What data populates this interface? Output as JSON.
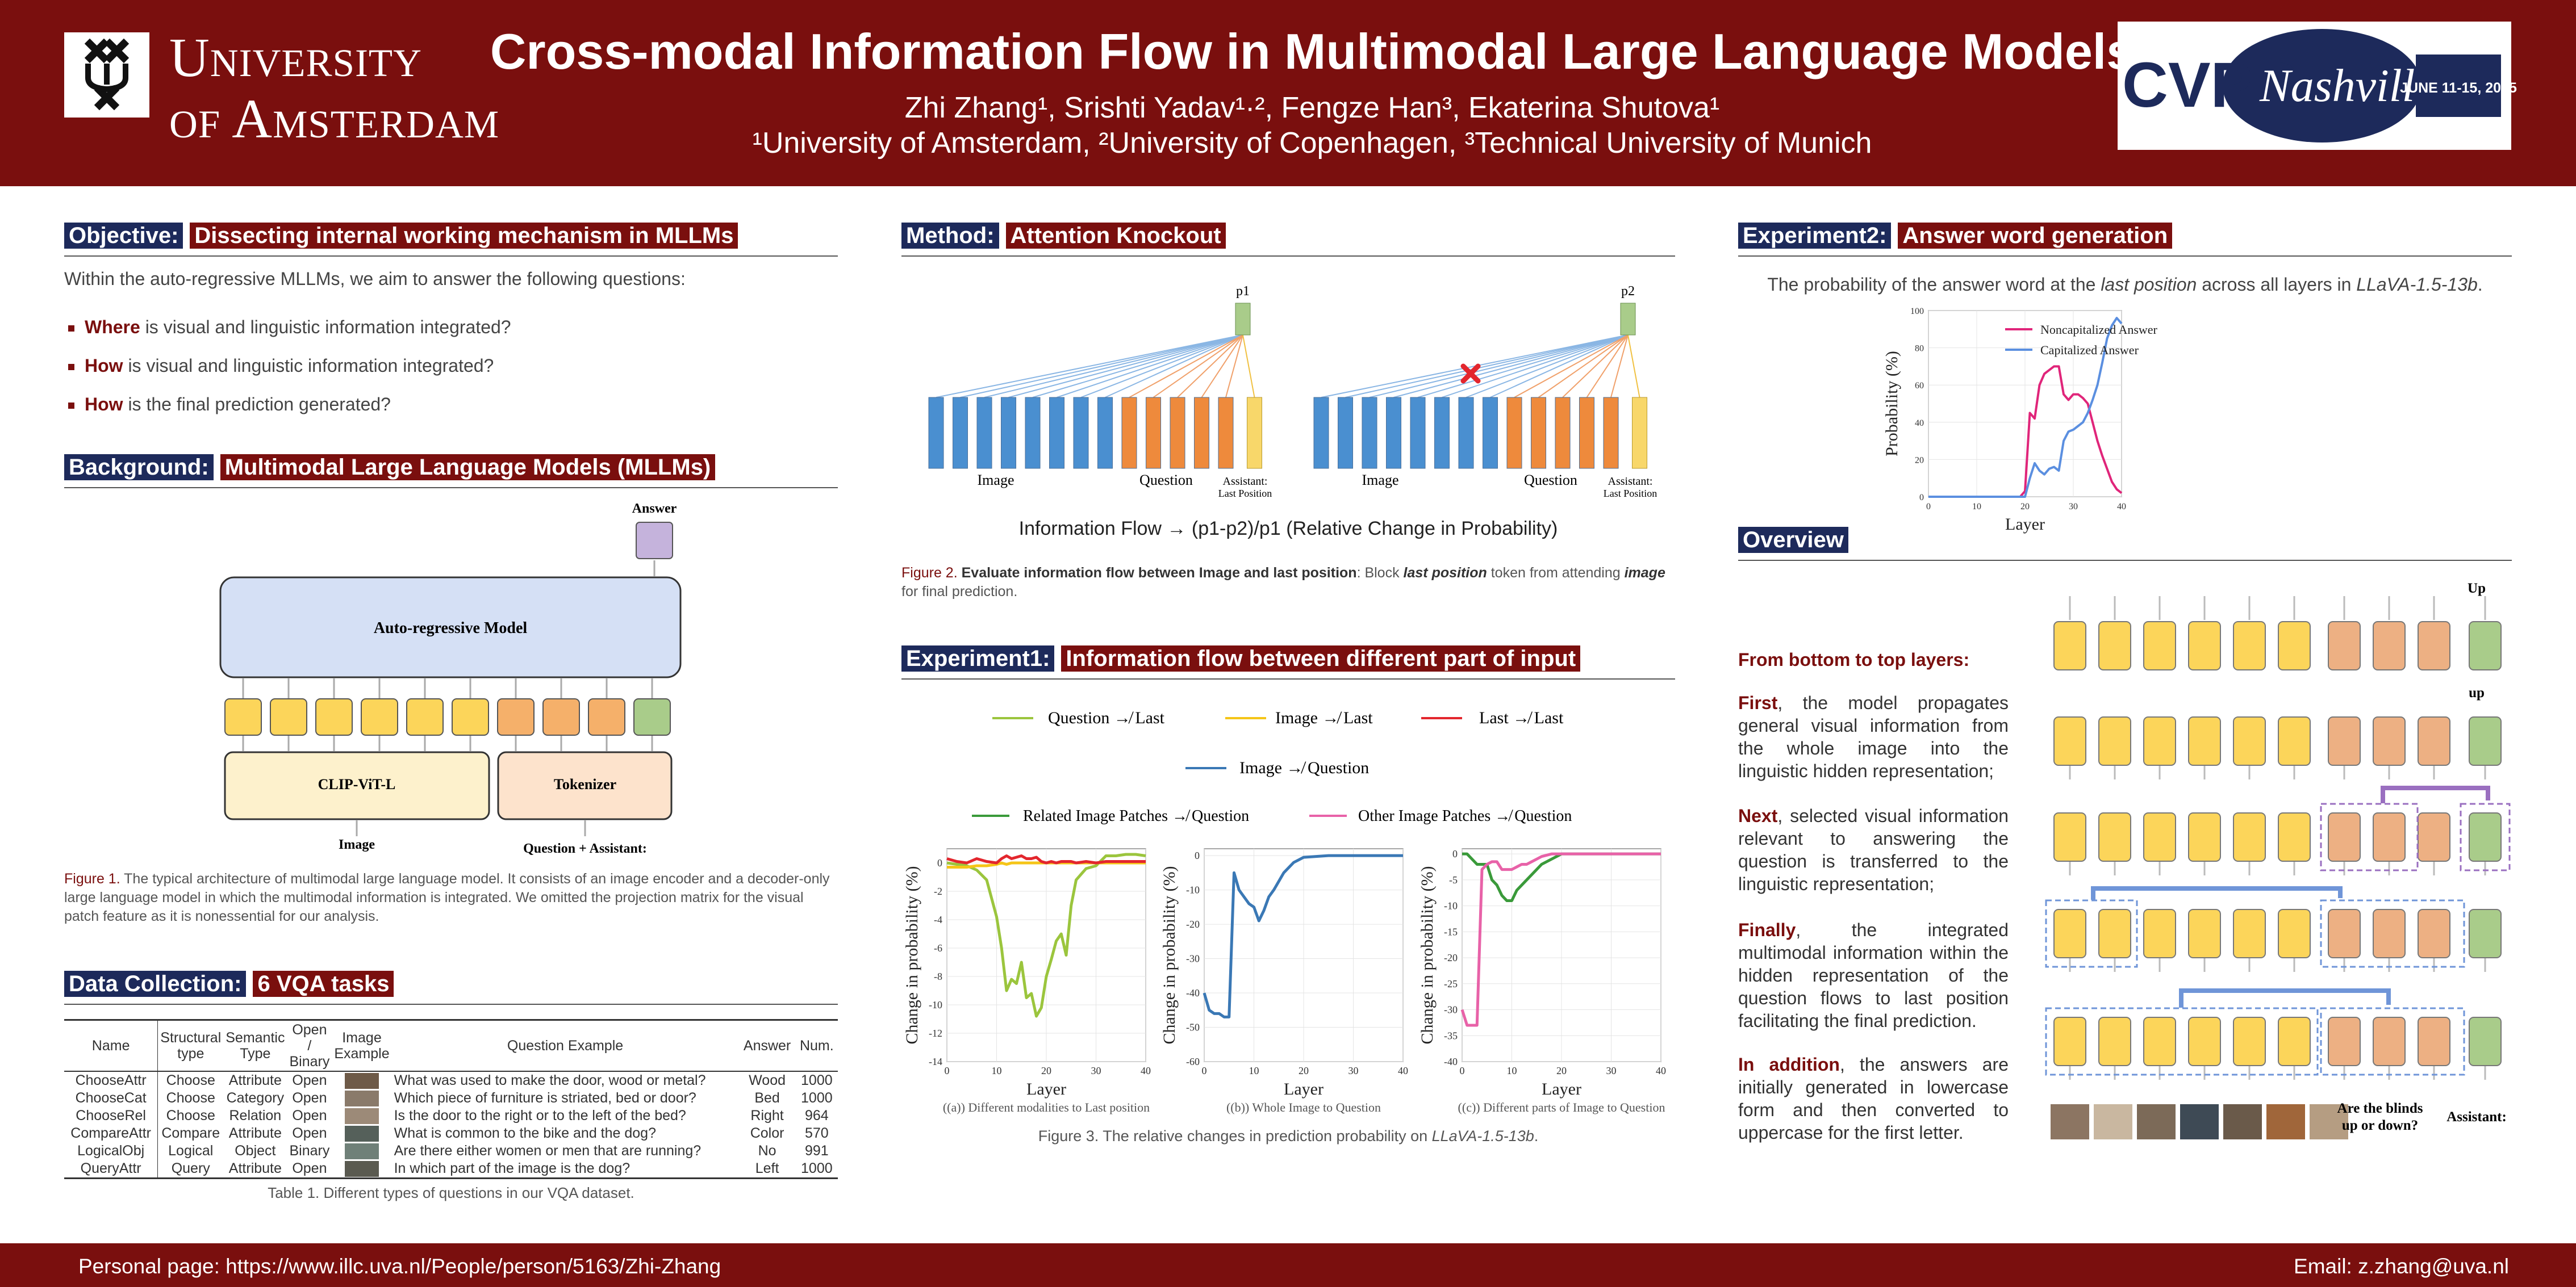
{
  "header": {
    "uni_line1": "University",
    "uni_line2": "of Amsterdam",
    "title": "Cross-modal Information Flow in Multimodal Large Language Models",
    "authors": "Zhi Zhang¹, Srishti Yadav¹·², Fengze Han³, Ekaterina Shutova¹",
    "affiliations": "¹University of Amsterdam, ²University of Copenhagen, ³Technical University of Munich",
    "conf_text": "CVPR",
    "conf_city": "Nashville",
    "conf_dates": "JUNE 11-15, 2025"
  },
  "objective": {
    "tag": "Objective:",
    "title": "Dissecting internal working mechanism in MLLMs",
    "intro": "Within the auto-regressive MLLMs, we aim to answer the following questions:",
    "questions": [
      {
        "key": "Where",
        "rest": " is visual and linguistic information integrated?"
      },
      {
        "key": "How",
        "rest": " is visual and linguistic information integrated?"
      },
      {
        "key": "How",
        "rest": " is the final prediction generated?"
      }
    ]
  },
  "background": {
    "tag": "Background:",
    "title": "Multimodal Large Language Models (MLLMs)",
    "answer": "Answer",
    "model": "Auto-regressive Model",
    "encoder": "CLIP-ViT-L",
    "tokenizer": "Tokenizer",
    "image_label": "Image",
    "text_label": "Question + Assistant:",
    "caption_label": "Figure 1.",
    "caption": " The typical architecture of multimodal large language model. It consists of an image encoder and a decoder-only large language model in which the multimodal information is integrated. We omitted the projection matrix for the visual patch feature as it is nonessential for our analysis."
  },
  "data_collection": {
    "tag": "Data Collection:",
    "title": "6 VQA tasks",
    "headers": [
      "Name",
      "Structural type",
      "Semantic Type",
      "Open / Binary",
      "Image Example",
      "Question Example",
      "Answer",
      "Num."
    ],
    "rows": [
      [
        "ChooseAttr",
        "Choose",
        "Attribute",
        "Open",
        "What was used to make the door, wood or metal?",
        "Wood",
        "1000"
      ],
      [
        "ChooseCat",
        "Choose",
        "Category",
        "Open",
        "Which piece of furniture is striated, bed or door?",
        "Bed",
        "1000"
      ],
      [
        "ChooseRel",
        "Choose",
        "Relation",
        "Open",
        "Is the door to the right or to the left of the bed?",
        "Right",
        "964"
      ],
      [
        "CompareAttr",
        "Compare",
        "Attribute",
        "Open",
        "What is common to the bike and the dog?",
        "Color",
        "570"
      ],
      [
        "LogicalObj",
        "Logical",
        "Object",
        "Binary",
        "Are there either women or men that are running?",
        "No",
        "991"
      ],
      [
        "QueryAttr",
        "Query",
        "Attribute",
        "Open",
        "In which part of the image is the dog?",
        "Left",
        "1000"
      ]
    ],
    "caption": "Table 1. Different types of questions in our VQA dataset."
  },
  "method": {
    "tag": "Method:",
    "title": "Attention Knockout",
    "p1": "p1",
    "p2": "p2",
    "image": "Image",
    "question": "Question",
    "assistant": "Assistant:",
    "last": "Last Position",
    "formula": "Information Flow → (p1-p2)/p1    (Relative Change in Probability)",
    "caption_label": "Figure 2.",
    "caption_bold": " Evaluate information flow between Image and last position",
    "caption_mid": ": Block ",
    "caption_it1": "last position",
    "caption_mid2": " token from attending ",
    "caption_it2": "image",
    "caption_end": " for final prediction."
  },
  "experiment1": {
    "tag": "Experiment1:",
    "title": "Information flow between different part of input",
    "legend1": [
      "Question ↛ Last",
      "Image ↛ Last",
      "Last ↛ Last"
    ],
    "legend2": "Image ↛ Question",
    "legend3": [
      "Related Image Patches ↛ Question",
      "Other Image Patches ↛ Question"
    ],
    "caption": "Figure 3. The relative changes in prediction probability on ",
    "caption_model": "LLaVA-1.5-13b",
    "caption_end": "."
  },
  "chart_data": [
    {
      "type": "line",
      "xlabel": "Layer",
      "ylabel": "Change in probability (%)",
      "subtitle": "((a)) Different modalities to Last position",
      "xlim": [
        0,
        40
      ],
      "ylim": [
        -14,
        1
      ],
      "xticks": [
        0,
        10,
        20,
        30,
        40
      ],
      "yticks": [
        0,
        -2,
        -4,
        -6,
        -8,
        -10,
        -12,
        -14
      ],
      "x": [
        0,
        2,
        4,
        6,
        8,
        10,
        11,
        12,
        13,
        14,
        15,
        16,
        17,
        18,
        19,
        20,
        21,
        22,
        23,
        24,
        25,
        26,
        28,
        30,
        32,
        34,
        36,
        38,
        40
      ],
      "series": [
        {
          "name": "Question ↛ Last",
          "color": "#9bc53d",
          "values": [
            0,
            -0.1,
            -0.2,
            -0.5,
            -1.2,
            -3.8,
            -6,
            -9,
            -8.2,
            -8.5,
            -7,
            -9.5,
            -9.2,
            -10.8,
            -10.2,
            -8,
            -6.8,
            -5.5,
            -5,
            -6.5,
            -3,
            -1.2,
            -0.4,
            -0.2,
            0.5,
            0.5,
            0.6,
            0.6,
            0.5
          ]
        },
        {
          "name": "Image ↛ Last",
          "color": "#f5c518",
          "values": [
            -0.3,
            -0.3,
            -0.3,
            -0.2,
            -0.2,
            -0.1,
            0,
            -0.1,
            0,
            0,
            0,
            0,
            0,
            0,
            0,
            0,
            0,
            0,
            0,
            0,
            0,
            0,
            0,
            0,
            0,
            0,
            0,
            0,
            0
          ]
        },
        {
          "name": "Last ↛ Last",
          "color": "#e3262d",
          "values": [
            0.3,
            0.1,
            0,
            0.3,
            0.1,
            0,
            0.3,
            0.5,
            0.3,
            0.4,
            0.5,
            0.3,
            0.3,
            0.4,
            0.1,
            0,
            0.1,
            0,
            0.1,
            0.1,
            0.1,
            0,
            0.1,
            0,
            0.1,
            0.1,
            0.1,
            0.1,
            0.1
          ]
        }
      ]
    },
    {
      "type": "line",
      "xlabel": "Layer",
      "ylabel": "Change in probability (%)",
      "subtitle": "((b)) Whole Image to Question",
      "xlim": [
        0,
        40
      ],
      "ylim": [
        -60,
        2
      ],
      "xticks": [
        0,
        10,
        20,
        30,
        40
      ],
      "yticks": [
        0,
        -10,
        -20,
        -30,
        -40,
        -50,
        -60
      ],
      "x": [
        0,
        1,
        2,
        3,
        4,
        5,
        6,
        7,
        8,
        9,
        10,
        11,
        12,
        13,
        14,
        16,
        18,
        20,
        25,
        30,
        35,
        40
      ],
      "series": [
        {
          "name": "Image ↛ Question",
          "color": "#3a78b5",
          "values": [
            -40,
            -45,
            -46,
            -46,
            -47,
            -47,
            -5,
            -10,
            -12,
            -14,
            -15,
            -19,
            -16,
            -12,
            -10,
            -5,
            -2,
            -0.5,
            0,
            0,
            0,
            0
          ]
        }
      ]
    },
    {
      "type": "line",
      "xlabel": "Layer",
      "ylabel": "Change in probability (%)",
      "subtitle": "((c)) Different parts of Image to Question",
      "xlim": [
        0,
        40
      ],
      "ylim": [
        -40,
        1
      ],
      "xticks": [
        0,
        10,
        20,
        30,
        40
      ],
      "yticks": [
        0,
        -5,
        -10,
        -15,
        -20,
        -25,
        -30,
        -35,
        -40
      ],
      "x": [
        0,
        1,
        2,
        3,
        4,
        5,
        6,
        7,
        8,
        9,
        10,
        11,
        12,
        13,
        14,
        15,
        16,
        18,
        20,
        25,
        30,
        35,
        40
      ],
      "series": [
        {
          "name": "Related Image Patches ↛ Question",
          "color": "#3a9a3a",
          "values": [
            0,
            0,
            -1,
            -2,
            -2,
            -2,
            -5,
            -6,
            -8,
            -9,
            -9,
            -7,
            -6,
            -5,
            -4,
            -3,
            -2,
            -1,
            0,
            0,
            0,
            0,
            0
          ]
        },
        {
          "name": "Other Image Patches ↛ Question",
          "color": "#e862a8",
          "values": [
            -30,
            -33,
            -33,
            -33,
            -3,
            -2,
            -1.5,
            -1.5,
            -3,
            -3,
            -3,
            -2.5,
            -2,
            -2,
            -1.5,
            -1,
            -0.5,
            0,
            0,
            0,
            0,
            0,
            0
          ]
        }
      ]
    },
    {
      "type": "line",
      "xlabel": "Layer",
      "ylabel": "Probability (%)",
      "xlim": [
        0,
        40
      ],
      "ylim": [
        0,
        100
      ],
      "xticks": [
        0,
        10,
        20,
        30,
        40
      ],
      "yticks": [
        0,
        20,
        40,
        60,
        80,
        100
      ],
      "x": [
        0,
        5,
        10,
        15,
        19,
        20,
        21,
        22,
        23,
        24,
        25,
        26,
        27,
        28,
        29,
        30,
        31,
        32,
        33,
        34,
        35,
        36,
        37,
        38,
        39,
        40
      ],
      "series": [
        {
          "name": "Noncapitalized Answer",
          "color": "#e0257a",
          "values": [
            0,
            0,
            0,
            0,
            0,
            3,
            45,
            42,
            60,
            66,
            68,
            70,
            70,
            55,
            52,
            55,
            55,
            53,
            50,
            40,
            30,
            22,
            15,
            8,
            4,
            2
          ]
        },
        {
          "name": "Capitalized Answer",
          "color": "#5b8fe0",
          "values": [
            0,
            0,
            0,
            0,
            0,
            0,
            10,
            18,
            14,
            12,
            15,
            16,
            14,
            30,
            35,
            36,
            38,
            40,
            45,
            52,
            60,
            72,
            85,
            92,
            96,
            93
          ]
        }
      ]
    }
  ],
  "experiment2": {
    "tag": "Experiment2:",
    "title": "Answer word generation",
    "desc": "The probability of the answer word at the ",
    "desc_it1": "last position",
    "desc_mid": " across all layers in ",
    "desc_it2": "LLaVA-1.5-13b",
    "desc_end": "."
  },
  "overview": {
    "tag": "Overview",
    "heading": "From bottom to top layers:",
    "p1_key": "First",
    "p1_rest": ", the model propagates general visual information from the whole image into the linguistic hidden representation;",
    "p2_key": "Next",
    "p2_rest": ", selected visual information relevant to answering the question is transferred to the linguistic representation;",
    "p3_key": "Finally",
    "p3_rest": ", the integrated multimodal information within the hidden representation of the question flows to last position facilitating the final prediction.",
    "p4_key": "In addition",
    "p4_rest": ", the answers are initially generated in lowercase form and then converted to uppercase for the first letter.",
    "up_cap": "Up",
    "up_low": "up",
    "question": "Are the blinds up or down?",
    "assistant": "Assistant:"
  },
  "footer": {
    "personal": "Personal page: https://www.illc.uva.nl/People/person/5163/Zhi-Zhang",
    "email": "Email: z.zhang@uva.nl"
  }
}
